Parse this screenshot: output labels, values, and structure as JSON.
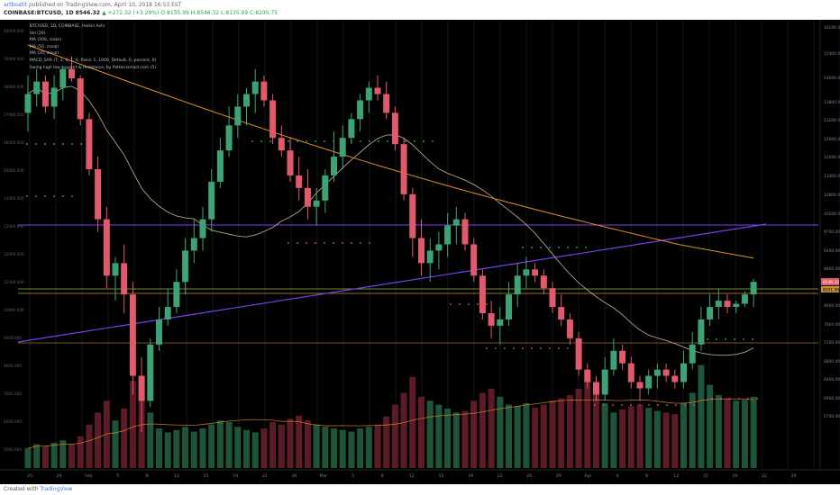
{
  "header": {
    "author": "artboatit",
    "published": "published on TradingView.com, April 10, 2018 16:53 EST",
    "symbol": "COINBASE:BTCUSD, 1D",
    "price": "8546.32",
    "change": "▲ +272.32 (+3.29%)",
    "ohlc": "O:8135.99  H:8546.32  L:8135.99  C:8295.75"
  },
  "legend": [
    "BTC/USD, 1D, COINBASE, Heikin Ashi",
    "Vol (20)",
    "MA (200, close)",
    "MA (50, close)",
    "MA (20, close)",
    "MACD_SAR (7, 3, 6, 1, 0, fixed, 1, 1000, Default, 0, percent, 0)",
    "Swing high low support & resistance, by Patternsmart.com (5)"
  ],
  "footer": {
    "created": "Created with",
    "brand": "TradingView"
  },
  "colors": {
    "bull": "#3ea374",
    "bear": "#e15a6b",
    "vol_bull": "#1e5438",
    "vol_bear": "#5c1b27",
    "ma200": "#e58c26",
    "ma50": "#b3a57a",
    "trend": "#7b3ff2",
    "hline_green": "#98b93b",
    "hline_orange": "#c98f2e",
    "price_tag": "#e15a6b",
    "dots_green": "#34c46b",
    "dots_red": "#e15a6b"
  },
  "chart_data": {
    "type": "candlestick",
    "left_axis_ticks": [
      "20000.000",
      "19000.000",
      "18000.000",
      "17000.000",
      "16000.000",
      "15000.000",
      "14000.000",
      "13000.000",
      "12000.000",
      "11000.000",
      "10000.000",
      "9000.000",
      "8000.000",
      "7000.000",
      "6000.000",
      "5000.000"
    ],
    "right_axis_ticks": [
      "16200.00",
      "15400.00",
      "14600.00",
      "13800.00",
      "13200.00",
      "12600.00",
      "12000.00",
      "11400.00",
      "10800.00",
      "10200.00",
      "9700.00",
      "9200.00",
      "8800.00",
      "8400.00",
      "8000.00",
      "7600.00",
      "7200.00",
      "6800.00",
      "6400.00",
      "6000.00",
      "5700.00"
    ],
    "right_axis_ticks_y": [
      32,
      61,
      88,
      115,
      135,
      156,
      176,
      197,
      218,
      239,
      259,
      280,
      300,
      321,
      341,
      362,
      382,
      403,
      423,
      444,
      464
    ],
    "x_ticks": [
      "25",
      "29",
      "Feb",
      "5",
      "8",
      "12",
      "15",
      "19",
      "22",
      "26",
      "Mar",
      "5",
      "8",
      "12",
      "15",
      "19",
      "22",
      "26",
      "29",
      "Apr",
      "4",
      "8",
      "12",
      "15",
      "19",
      "22",
      "26"
    ],
    "price_tag": "8546.32",
    "price_tag_2": "8291.00",
    "candles": [
      [
        11200,
        11800,
        10900,
        11500
      ],
      [
        11500,
        11900,
        11300,
        11700
      ],
      [
        11700,
        11800,
        11200,
        11300
      ],
      [
        11300,
        11800,
        11100,
        11600
      ],
      [
        11600,
        11950,
        11400,
        11900
      ],
      [
        11900,
        12100,
        11700,
        11750
      ],
      [
        11750,
        11800,
        11000,
        11100
      ],
      [
        11100,
        11200,
        10200,
        10300
      ],
      [
        10300,
        10500,
        9300,
        9500
      ],
      [
        9500,
        9700,
        8400,
        8600
      ],
      [
        8600,
        8900,
        8200,
        8800
      ],
      [
        8800,
        9100,
        8000,
        8300
      ],
      [
        8300,
        8500,
        6700,
        7000
      ],
      [
        7000,
        7300,
        6100,
        6600
      ],
      [
        6600,
        7600,
        6500,
        7500
      ],
      [
        7500,
        8100,
        7400,
        7900
      ],
      [
        7900,
        8400,
        7800,
        8100
      ],
      [
        8100,
        8700,
        8000,
        8500
      ],
      [
        8500,
        9200,
        8300,
        9000
      ],
      [
        9000,
        9500,
        8800,
        9200
      ],
      [
        9200,
        9700,
        9000,
        9500
      ],
      [
        9500,
        10300,
        9300,
        10100
      ],
      [
        10100,
        10800,
        10000,
        10600
      ],
      [
        10600,
        11300,
        10500,
        11000
      ],
      [
        11000,
        11500,
        10800,
        11300
      ],
      [
        11300,
        11600,
        11000,
        11500
      ],
      [
        11500,
        11900,
        11200,
        11700
      ],
      [
        11700,
        11800,
        11300,
        11400
      ],
      [
        11400,
        11500,
        10700,
        10800
      ],
      [
        10800,
        11000,
        10500,
        10600
      ],
      [
        10600,
        10800,
        10100,
        10200
      ],
      [
        10200,
        10500,
        9800,
        10000
      ],
      [
        10000,
        10300,
        9500,
        9700
      ],
      [
        9700,
        10000,
        9400,
        9800
      ],
      [
        9800,
        10300,
        9600,
        10200
      ],
      [
        10200,
        10900,
        10100,
        10500
      ],
      [
        10500,
        11000,
        10300,
        10800
      ],
      [
        10800,
        11200,
        10700,
        11100
      ],
      [
        11100,
        11500,
        10900,
        11400
      ],
      [
        11400,
        11700,
        11200,
        11600
      ],
      [
        11600,
        11800,
        11400,
        11500
      ],
      [
        11500,
        11700,
        11100,
        11200
      ],
      [
        11200,
        11300,
        10600,
        10700
      ],
      [
        10700,
        10800,
        9800,
        9900
      ],
      [
        9900,
        10000,
        8900,
        9200
      ],
      [
        9200,
        9500,
        8600,
        8800
      ],
      [
        8800,
        9200,
        8500,
        9000
      ],
      [
        9000,
        9300,
        8700,
        9100
      ],
      [
        9100,
        9600,
        8900,
        9400
      ],
      [
        9400,
        9700,
        9100,
        9500
      ],
      [
        9500,
        9600,
        9000,
        9100
      ],
      [
        9100,
        9200,
        8500,
        8600
      ],
      [
        8600,
        8700,
        7900,
        8000
      ],
      [
        8000,
        8200,
        7600,
        7800
      ],
      [
        7800,
        8100,
        7500,
        7900
      ],
      [
        7900,
        8500,
        7800,
        8300
      ],
      [
        8300,
        8800,
        8100,
        8600
      ],
      [
        8600,
        8900,
        8400,
        8700
      ],
      [
        8700,
        8800,
        8500,
        8600
      ],
      [
        8600,
        8700,
        8300,
        8400
      ],
      [
        8400,
        8500,
        8000,
        8100
      ],
      [
        8100,
        8300,
        7800,
        7900
      ],
      [
        7900,
        8000,
        7500,
        7600
      ],
      [
        7600,
        7700,
        7000,
        7100
      ],
      [
        7100,
        7200,
        6800,
        6900
      ],
      [
        6900,
        7000,
        6600,
        6700
      ],
      [
        6700,
        7300,
        6600,
        7100
      ],
      [
        7100,
        7600,
        7000,
        7400
      ],
      [
        7400,
        7500,
        7100,
        7200
      ],
      [
        7200,
        7300,
        6800,
        6900
      ],
      [
        6900,
        7000,
        6600,
        6800
      ],
      [
        6800,
        7100,
        6700,
        7000
      ],
      [
        7000,
        7200,
        6800,
        7100
      ],
      [
        7100,
        7200,
        6900,
        7000
      ],
      [
        7000,
        7100,
        6800,
        6900
      ],
      [
        6900,
        7400,
        6800,
        7200
      ],
      [
        7200,
        7700,
        7100,
        7500
      ],
      [
        7500,
        8100,
        7400,
        7900
      ],
      [
        7900,
        8300,
        7800,
        8100
      ],
      [
        8100,
        8400,
        7900,
        8200
      ],
      [
        8200,
        8300,
        8000,
        8100
      ],
      [
        8100,
        8200,
        8000,
        8150
      ],
      [
        8150,
        8350,
        8100,
        8300
      ],
      [
        8300,
        8550,
        8100,
        8500
      ]
    ],
    "volume": [
      25,
      30,
      28,
      32,
      35,
      30,
      40,
      55,
      70,
      85,
      60,
      75,
      110,
      90,
      70,
      50,
      45,
      48,
      52,
      46,
      50,
      55,
      60,
      58,
      52,
      48,
      45,
      50,
      58,
      55,
      62,
      66,
      60,
      55,
      52,
      50,
      48,
      46,
      50,
      52,
      55,
      65,
      80,
      95,
      115,
      90,
      85,
      80,
      75,
      70,
      72,
      85,
      95,
      100,
      90,
      80,
      78,
      82,
      76,
      80,
      85,
      88,
      92,
      100,
      110,
      95,
      82,
      70,
      74,
      78,
      80,
      76,
      72,
      70,
      68,
      82,
      95,
      130,
      105,
      92,
      88,
      85,
      86,
      90
    ]
  }
}
